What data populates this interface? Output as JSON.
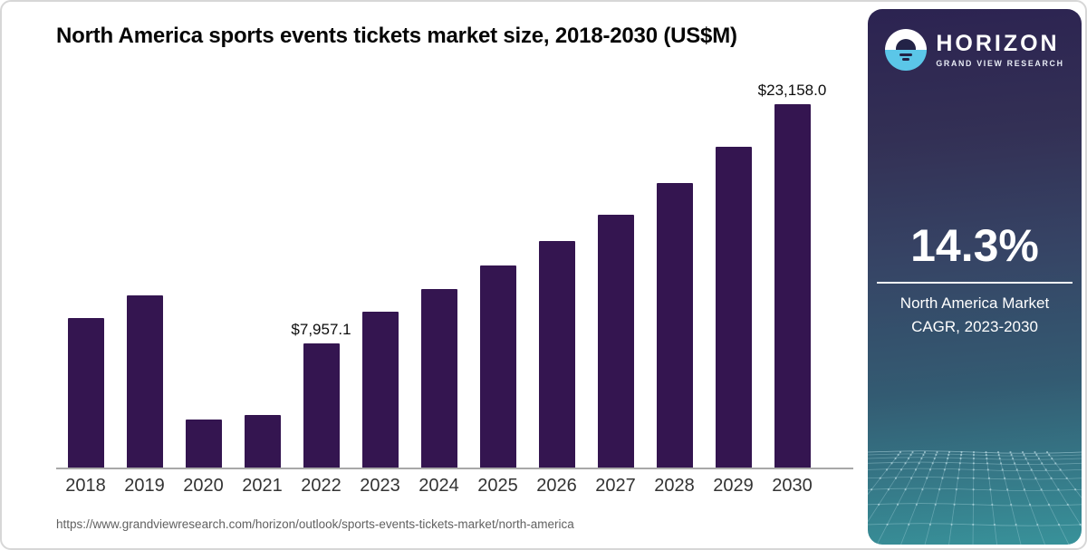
{
  "header": {
    "title": "North America sports events tickets market size, 2018-2030 (US$M)"
  },
  "chart_data": {
    "type": "bar",
    "title": "North America sports events tickets market size, 2018-2030 (US$M)",
    "unit": "US$M",
    "categories": [
      "2018",
      "2019",
      "2020",
      "2021",
      "2022",
      "2023",
      "2024",
      "2025",
      "2026",
      "2027",
      "2028",
      "2029",
      "2030"
    ],
    "values": [
      9550,
      10980,
      3110,
      3400,
      7957.1,
      9960,
      11410,
      12890,
      14430,
      16130,
      18130,
      20430,
      23158.0
    ],
    "point_labels": [
      "",
      "",
      "",
      "",
      "$7,957.1",
      "",
      "",
      "",
      "",
      "",
      "",
      "",
      "$23,158.0"
    ],
    "bar_color": "#341550",
    "xlabel": "",
    "ylabel": "",
    "ylim": [
      0,
      24000
    ],
    "grid": false,
    "legend": "none"
  },
  "sidebar": {
    "logo": {
      "brand": "HORIZON",
      "sub_brand": "GRAND VIEW RESEARCH",
      "icon": "horizon-sun-circle-icon"
    },
    "stat": {
      "value": "14.3%",
      "caption": "North America Market CAGR, 2023-2030"
    }
  },
  "footer": {
    "source_url": "https://www.grandviewresearch.com/horizon/outlook/sports-events-tickets-market/north-america"
  },
  "theme": {
    "bar_color": "#341550",
    "sidebar_gradient_top": "#2c2351",
    "sidebar_gradient_bottom": "#38929a",
    "logo_blue": "#5bc6e8",
    "logo_navy": "#232347",
    "axis_line": "#a8a8a8"
  }
}
